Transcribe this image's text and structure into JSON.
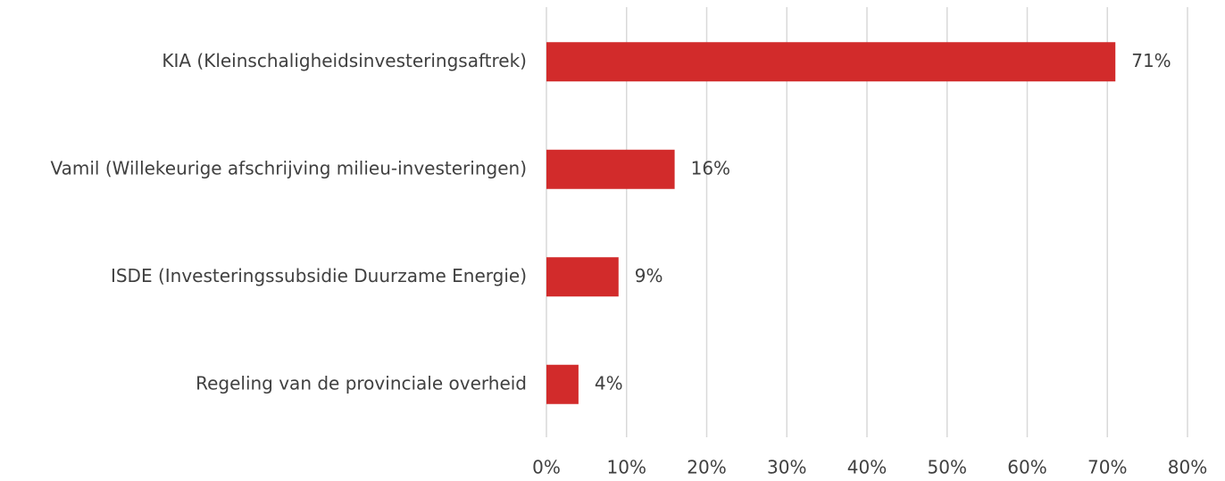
{
  "chart_data": {
    "type": "bar",
    "orientation": "horizontal",
    "categories": [
      "KIA (Kleinschaligheidsinvesteringsaftrek)",
      "Vamil (Willekeurige afschrijving milieu-investeringen)",
      "ISDE (Investeringssubsidie Duurzame Energie)",
      "Regeling van de provinciale overheid"
    ],
    "values": [
      71,
      16,
      9,
      4
    ],
    "value_labels": [
      "71%",
      "16%",
      "9%",
      "4%"
    ],
    "color": "#d22b2b",
    "xlim": [
      0,
      80
    ],
    "xticks": [
      {
        "value": 0,
        "label": "0%"
      },
      {
        "value": 10,
        "label": "10%"
      },
      {
        "value": 20,
        "label": "20%"
      },
      {
        "value": 30,
        "label": "30%"
      },
      {
        "value": 40,
        "label": "40%"
      },
      {
        "value": 50,
        "label": "50%"
      },
      {
        "value": 60,
        "label": "60%"
      },
      {
        "value": 70,
        "label": "70%"
      },
      {
        "value": 80,
        "label": "80%"
      }
    ],
    "grid": true
  }
}
